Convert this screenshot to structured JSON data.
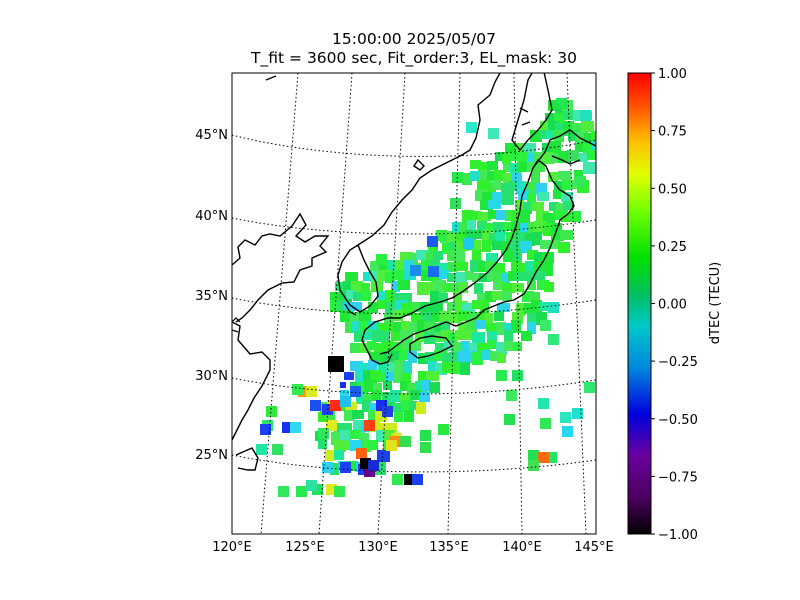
{
  "chart_data": {
    "type": "heatmap",
    "title": "15:00:00 2025/05/07",
    "subtitle": "T_fit = 3600 sec, Fit_order:3, EL_mask: 30",
    "projection": "lambert-conformal map of Japan and surroundings",
    "lon_range": [
      120,
      145
    ],
    "lat_range": [
      20,
      48
    ],
    "lon_ticks": [
      "120°E",
      "125°E",
      "130°E",
      "135°E",
      "140°E",
      "145°E"
    ],
    "lat_ticks": [
      "25°N",
      "30°N",
      "35°N",
      "40°N",
      "45°N"
    ],
    "grid": "dotted graticule",
    "colorbar": {
      "label": "dTEC (TECU)",
      "range": [
        -1.0,
        1.0
      ],
      "ticks": [
        "1.00",
        "0.75",
        "0.50",
        "0.25",
        "0.00",
        "−0.25",
        "−0.50",
        "−0.75",
        "−1.00"
      ],
      "colormap": "nipy_spectral-like (black-purple-blue-cyan-green-yellow-orange-red)"
    },
    "colors": {
      "dominant_green": "#22e838",
      "cyan": "#19d6e0",
      "blue": "#1a3cf0",
      "black": "#000000",
      "red": "#ff2a10",
      "yellow": "#e6e61a",
      "orange": "#ff9a18"
    }
  }
}
